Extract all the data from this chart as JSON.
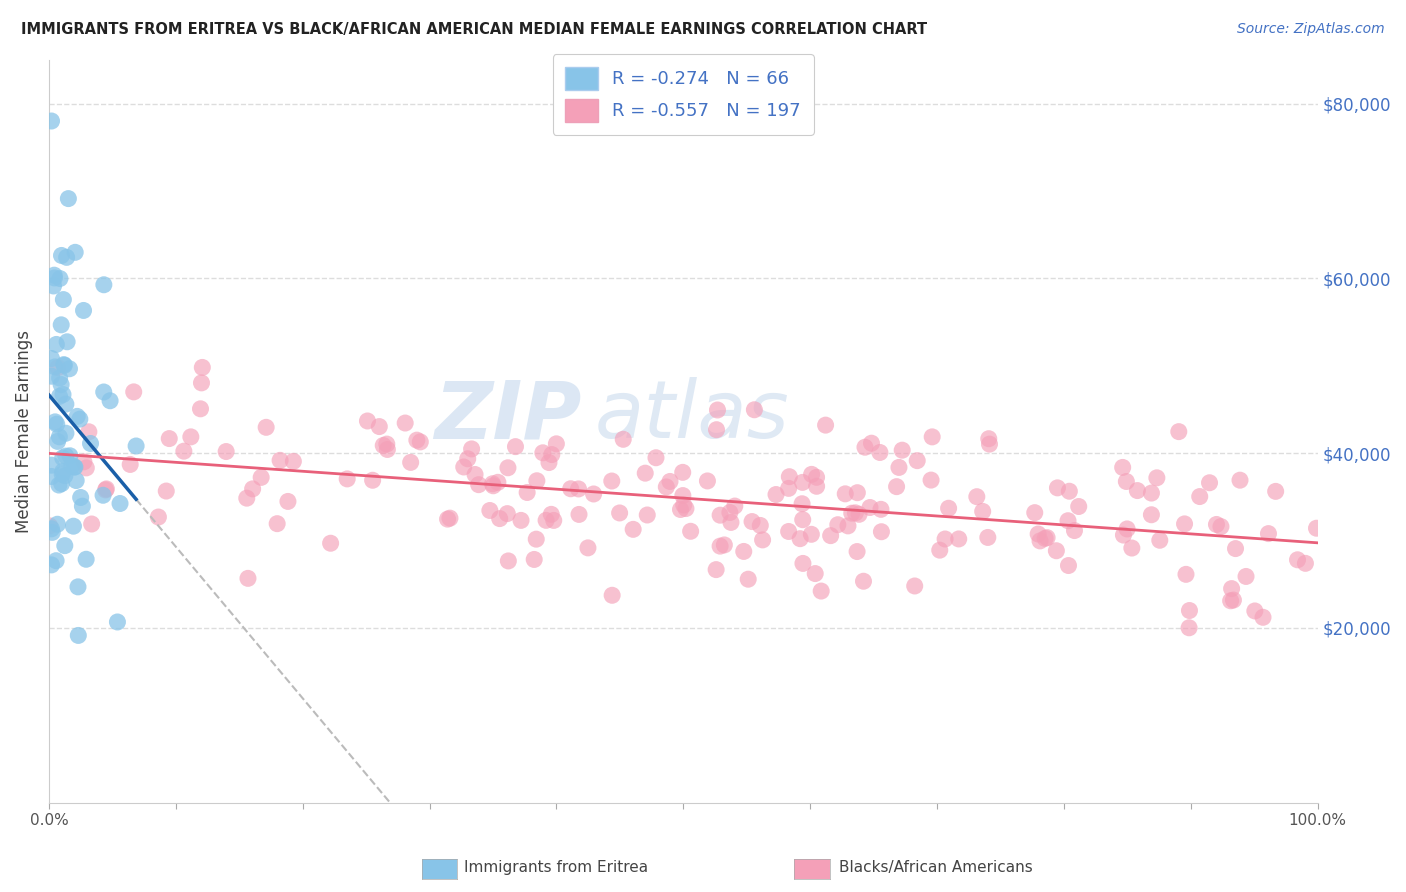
{
  "title": "IMMIGRANTS FROM ERITREA VS BLACK/AFRICAN AMERICAN MEDIAN FEMALE EARNINGS CORRELATION CHART",
  "source": "Source: ZipAtlas.com",
  "ylabel": "Median Female Earnings",
  "legend_label1": "Immigrants from Eritrea",
  "legend_label2": "Blacks/African Americans",
  "r1": -0.274,
  "n1": 66,
  "r2": -0.557,
  "n2": 197,
  "color_blue": "#88c4e8",
  "color_blue_line": "#1a5fa8",
  "color_pink": "#f4a0b8",
  "color_pink_line": "#e8607a",
  "color_dashed": "#bbbbbb",
  "xlim": [
    0.0,
    1.0
  ],
  "ylim": [
    0,
    85000
  ],
  "yticks": [
    20000,
    40000,
    60000,
    80000
  ],
  "ytick_labels_right": [
    "$20,000",
    "$40,000",
    "$60,000",
    "$80,000"
  ],
  "watermark_zip": "ZIP",
  "watermark_atlas": "atlas",
  "background_color": "#ffffff",
  "grid_color": "#dddddd",
  "legend_color_blue": "#4472c4",
  "legend_color_pink": "#e05070"
}
